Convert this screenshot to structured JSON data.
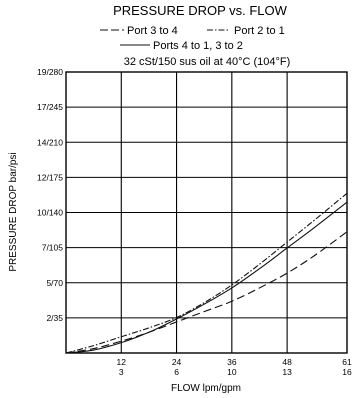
{
  "chart_data": {
    "type": "line",
    "title": "PRESSURE DROP vs. FLOW",
    "subtitle": "32 cSt/150 sus oil at 40°C (104°F)",
    "xlabel": "FLOW lpm/gpm",
    "ylabel": "PRESSURE DROP bar/psi",
    "xlim": [
      0,
      61
    ],
    "ylim": [
      0,
      19
    ],
    "grid": true,
    "legend_placement": "top",
    "x_ticks": [
      {
        "value": 12,
        "line1": "12",
        "line2": "3"
      },
      {
        "value": 24,
        "line1": "24",
        "line2": "6"
      },
      {
        "value": 36,
        "line1": "36",
        "line2": "10"
      },
      {
        "value": 48,
        "line1": "48",
        "line2": "13"
      },
      {
        "value": 61,
        "line1": "61",
        "line2": "16"
      }
    ],
    "y_ticks": [
      {
        "value": 2,
        "label": "2/35"
      },
      {
        "value": 5,
        "label": "5/70"
      },
      {
        "value": 7,
        "label": "7/105"
      },
      {
        "value": 10,
        "label": "10/140"
      },
      {
        "value": 12,
        "label": "12/175"
      },
      {
        "value": 14,
        "label": "14/210"
      },
      {
        "value": 17,
        "label": "17/245"
      },
      {
        "value": 19,
        "label": "19/280"
      }
    ],
    "series": [
      {
        "name": "Port 3 to 4",
        "style": "long-dash",
        "x": [
          0,
          6,
          12,
          18,
          24,
          30,
          36,
          42,
          48,
          54,
          61
        ],
        "y": [
          0,
          0.3,
          0.8,
          1.4,
          2.1,
          2.8,
          3.5,
          4.4,
          5.4,
          6.6,
          8.2
        ]
      },
      {
        "name": "Port 2 to 1",
        "style": "dash-dot",
        "x": [
          0,
          6,
          12,
          18,
          24,
          30,
          36,
          42,
          48,
          54,
          61
        ],
        "y": [
          0,
          0.5,
          1.1,
          1.7,
          2.4,
          3.4,
          4.6,
          6.0,
          7.5,
          9.0,
          10.8
        ]
      },
      {
        "name": "Ports 4 to 1, 3 to 2",
        "style": "solid",
        "x": [
          0,
          6,
          12,
          18,
          24,
          30,
          36,
          42,
          48,
          54,
          61
        ],
        "y": [
          0,
          0.2,
          0.7,
          1.4,
          2.3,
          3.3,
          4.4,
          5.7,
          7.1,
          8.5,
          10.2
        ]
      }
    ]
  }
}
